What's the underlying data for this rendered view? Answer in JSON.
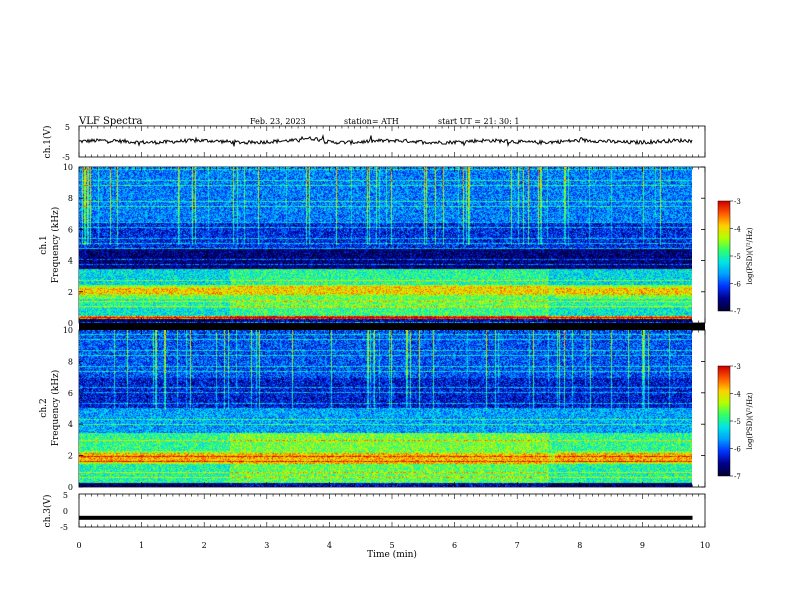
{
  "header": {
    "title": "VLF  Spectra",
    "date": "Feb. 23, 2023",
    "station": "station= ATH",
    "start": "start  UT  =     21: 30: 1"
  },
  "colors": {
    "colormap": [
      "#000033",
      "#00008c",
      "#0033ff",
      "#00a0ff",
      "#00e6e6",
      "#33ff66",
      "#b4ff00",
      "#ffd000",
      "#ff5a00",
      "#d20000",
      "#ffffff"
    ],
    "trace": "#000000"
  },
  "chart_data": [
    {
      "type": "line",
      "name": "ch1-waveform",
      "ylabel": "ch.1(V)",
      "ylim": [
        -5,
        5
      ],
      "yticks": [
        "5",
        "-5"
      ],
      "xlim": [
        0,
        10
      ],
      "approx_level": 0
    },
    {
      "type": "heatmap",
      "name": "ch1-spectrogram",
      "ylabel_top": "ch.1",
      "ylabel": "Frequency  (kHz)",
      "ylim": [
        0,
        10
      ],
      "yticks": [
        "0",
        "2",
        "4",
        "6",
        "8",
        "10"
      ],
      "xlim": [
        0,
        10
      ],
      "data_end_min": 9.8,
      "colorbar": {
        "label": "log(PSD)(V²/Hz)",
        "ticks": [
          "-3",
          "-4",
          "-5",
          "-6",
          "-7"
        ],
        "range": [
          -7,
          -3
        ]
      },
      "bands": [
        {
          "kHz": [
            0.0,
            0.3
          ],
          "level": -6.8
        },
        {
          "kHz": [
            0.3,
            0.5
          ],
          "level": -3.6
        },
        {
          "kHz": [
            0.5,
            1.0
          ],
          "level": -5.2
        },
        {
          "kHz": [
            1.0,
            1.8
          ],
          "level": -5.0
        },
        {
          "kHz": [
            1.8,
            2.4
          ],
          "level": -4.3
        },
        {
          "kHz": [
            2.4,
            3.5
          ],
          "level": -5.3
        },
        {
          "kHz": [
            3.5,
            4.8
          ],
          "level": -6.7
        },
        {
          "kHz": [
            4.8,
            6.5
          ],
          "level": -6.2
        },
        {
          "kHz": [
            6.5,
            10.0
          ],
          "level": -5.8
        }
      ]
    },
    {
      "type": "heatmap",
      "name": "ch2-spectrogram",
      "ylabel_top": "ch.2",
      "ylabel": "Frequency  (kHz)",
      "ylim": [
        0,
        10
      ],
      "yticks": [
        "0",
        "2",
        "4",
        "6",
        "8",
        "10"
      ],
      "xlim": [
        0,
        10
      ],
      "data_end_min": 9.8,
      "colorbar": {
        "label": "log(PSD)(V²/Hz)",
        "ticks": [
          "-3",
          "-4",
          "-5",
          "-6",
          "-7"
        ],
        "range": [
          -7,
          -3
        ]
      },
      "bands": [
        {
          "kHz": [
            0.0,
            0.3
          ],
          "level": -6.8
        },
        {
          "kHz": [
            0.3,
            1.5
          ],
          "level": -5.0
        },
        {
          "kHz": [
            1.5,
            2.2
          ],
          "level": -4.2
        },
        {
          "kHz": [
            2.2,
            3.5
          ],
          "level": -4.9
        },
        {
          "kHz": [
            3.5,
            5.0
          ],
          "level": -5.6
        },
        {
          "kHz": [
            5.0,
            7.0
          ],
          "level": -6.3
        },
        {
          "kHz": [
            7.0,
            10.0
          ],
          "level": -6.0
        }
      ]
    },
    {
      "type": "line",
      "name": "ch3-waveform",
      "ylabel": "ch.3(V)",
      "ylim": [
        -5,
        5
      ],
      "yticks": [
        "5",
        "0",
        "-5"
      ],
      "xlim": [
        0,
        10
      ],
      "approx_level": -2.2
    }
  ],
  "xaxis": {
    "label": "Time  (min)",
    "ticks": [
      "0",
      "1",
      "2",
      "3",
      "4",
      "5",
      "6",
      "7",
      "8",
      "9",
      "10"
    ]
  }
}
